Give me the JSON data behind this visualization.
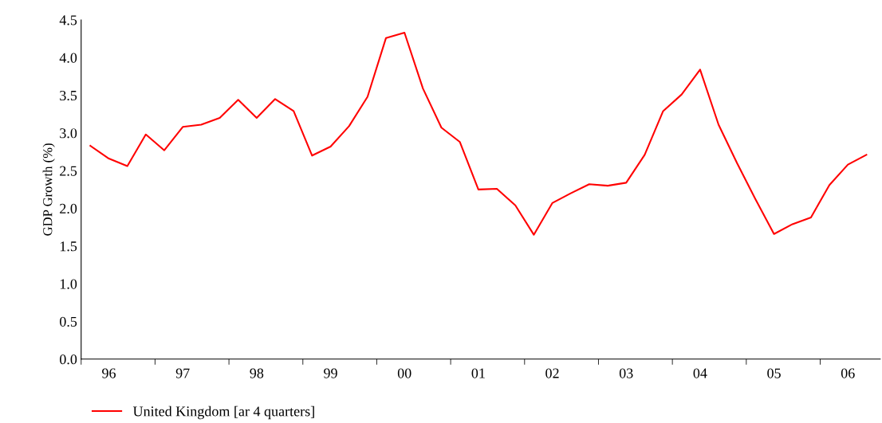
{
  "chart_data": {
    "type": "line",
    "ylabel": "GDP Growth (%)",
    "categories": [
      null,
      "96",
      null,
      null,
      null,
      "97",
      null,
      null,
      null,
      "98",
      null,
      null,
      null,
      "99",
      null,
      null,
      null,
      "00",
      null,
      null,
      null,
      "01",
      null,
      null,
      null,
      "02",
      null,
      null,
      null,
      "03",
      null,
      null,
      null,
      "04",
      null,
      null,
      null,
      "05",
      null,
      null,
      null,
      "06",
      null
    ],
    "series": [
      {
        "name": "United Kingdom [ar 4 quarters]",
        "color": "#ff0000",
        "values": [
          2.83,
          2.66,
          2.56,
          2.98,
          2.77,
          3.08,
          3.11,
          3.2,
          3.44,
          3.2,
          3.45,
          3.29,
          2.7,
          2.82,
          3.09,
          3.48,
          4.26,
          4.33,
          3.59,
          3.07,
          2.88,
          2.25,
          2.26,
          2.04,
          1.65,
          2.07,
          2.2,
          2.32,
          2.3,
          2.34,
          2.71,
          3.29,
          3.51,
          3.84,
          3.11,
          2.6,
          2.12,
          1.66,
          1.79,
          1.88,
          2.31,
          2.58,
          2.71
        ]
      }
    ],
    "ylim": [
      0,
      4.5
    ],
    "yticks": [
      {
        "value": 0,
        "label": "0.0"
      },
      0.5,
      {
        "value": 1,
        "label": "1.0"
      },
      1.5,
      {
        "value": 2,
        "label": "2.0"
      },
      2.5,
      {
        "value": 3,
        "label": "3.0"
      },
      3.5,
      {
        "value": 4,
        "label": "4.0"
      },
      4.5
    ],
    "grid": false,
    "legend": "bottom left",
    "marker": "none",
    "line_style": "solid"
  }
}
